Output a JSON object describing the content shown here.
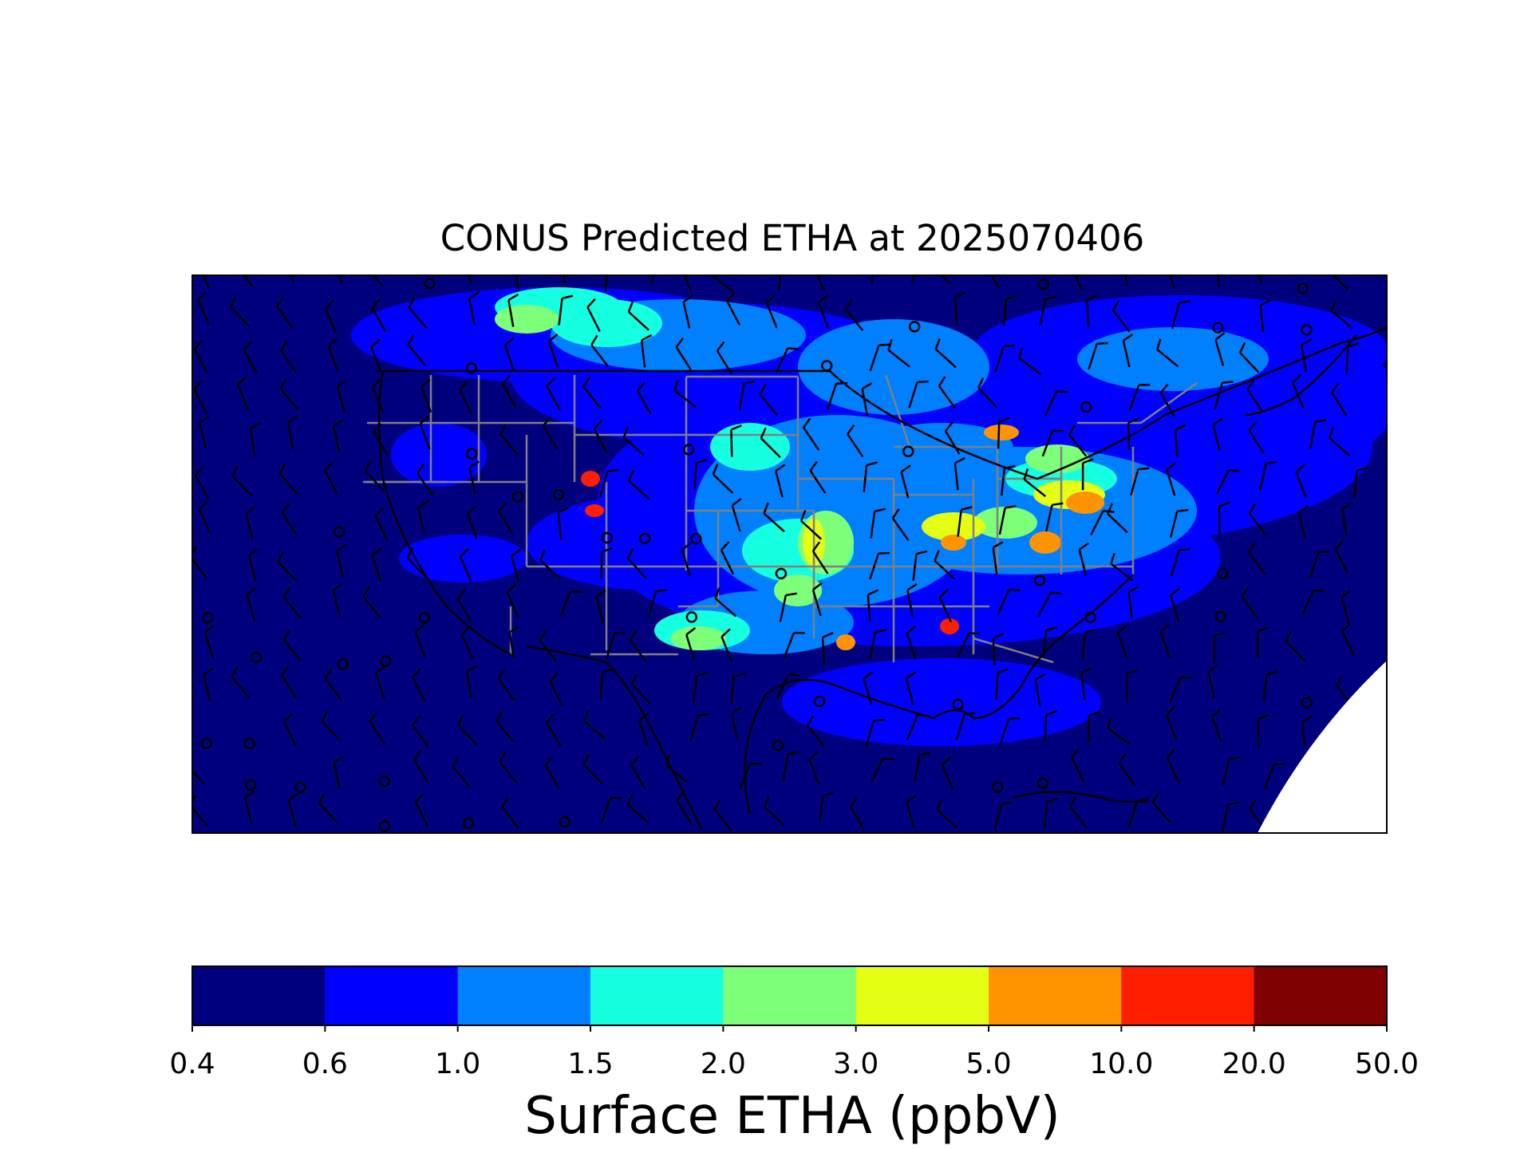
{
  "title": "CONUS Predicted ETHA at 2025070406",
  "colorbar": {
    "label": "Surface ETHA (ppbV)",
    "boundaries": [
      "0.4",
      "0.6",
      "1.0",
      "1.5",
      "2.0",
      "3.0",
      "5.0",
      "10.0",
      "20.0",
      "50.0"
    ],
    "colors": [
      "#00007f",
      "#0000ff",
      "#0080ff",
      "#15ffe1",
      "#7dff7a",
      "#e4ff13",
      "#ff9400",
      "#ff1e00",
      "#7f0000"
    ]
  },
  "map": {
    "region": "CONUS",
    "variable": "ETHA",
    "overlays": [
      "coastlines",
      "country-borders",
      "state-borders",
      "wind-barbs"
    ],
    "background_color": "#00007f",
    "state_border_color": "#808080",
    "coastline_color": "#000000"
  }
}
